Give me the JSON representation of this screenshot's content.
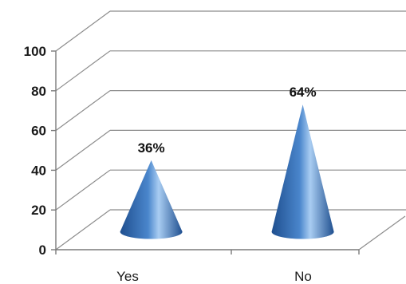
{
  "chart_data": {
    "type": "bar",
    "shape": "cone",
    "categories": [
      "Yes",
      "No"
    ],
    "values": [
      36,
      64
    ],
    "data_labels": [
      "36%",
      "64%"
    ],
    "ylim": [
      0,
      100
    ],
    "yticks": [
      0,
      20,
      40,
      60,
      80,
      100
    ],
    "ytick_labels": [
      "0",
      "20",
      "40",
      "60",
      "80",
      "100"
    ],
    "grid": true,
    "legend": "none",
    "projection": "3d",
    "colors": {
      "cone_dark": "#1f4f8f",
      "cone_mid": "#4a86cc",
      "cone_light": "#a9cdf2",
      "grid": "#8c8c8c"
    }
  }
}
